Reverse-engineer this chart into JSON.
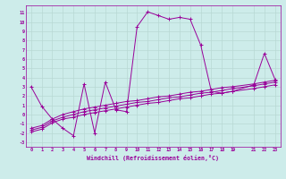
{
  "xlabel": "Windchill (Refroidissement éolien,°C)",
  "background_color": "#cdecea",
  "grid_color": "#b8d8d4",
  "line_color": "#990099",
  "x_ticks": [
    0,
    1,
    2,
    3,
    4,
    5,
    6,
    7,
    8,
    9,
    10,
    11,
    12,
    13,
    14,
    15,
    16,
    17,
    18,
    19,
    21,
    22,
    23
  ],
  "y_ticks": [
    11,
    10,
    9,
    8,
    7,
    6,
    5,
    4,
    3,
    2,
    1,
    0,
    -1,
    -2,
    -3
  ],
  "xlim": [
    -0.5,
    23.5
  ],
  "ylim": [
    -3.5,
    11.8
  ],
  "series1_x": [
    0,
    1,
    2,
    3,
    4,
    5,
    6,
    7,
    8,
    9,
    10,
    11,
    12,
    13,
    14,
    15,
    16,
    17,
    18,
    19,
    21,
    22,
    23
  ],
  "series1_y": [
    3.0,
    0.9,
    -0.5,
    -1.5,
    -2.3,
    3.3,
    -2.0,
    3.5,
    0.5,
    0.3,
    9.5,
    11.1,
    10.7,
    10.3,
    10.5,
    10.3,
    7.5,
    2.5,
    2.3,
    2.5,
    3.2,
    6.6,
    3.8
  ],
  "series2_x": [
    0,
    1,
    2,
    3,
    4,
    5,
    6,
    7,
    8,
    9,
    10,
    11,
    12,
    13,
    14,
    15,
    16,
    17,
    18,
    19,
    21,
    22,
    23
  ],
  "series2_y": [
    -1.5,
    -1.2,
    -0.5,
    0.0,
    0.3,
    0.6,
    0.8,
    1.0,
    1.2,
    1.4,
    1.5,
    1.7,
    1.9,
    2.0,
    2.2,
    2.4,
    2.5,
    2.7,
    2.9,
    3.0,
    3.3,
    3.5,
    3.7
  ],
  "series3_x": [
    0,
    1,
    2,
    3,
    4,
    5,
    6,
    7,
    8,
    9,
    10,
    11,
    12,
    13,
    14,
    15,
    16,
    17,
    18,
    19,
    21,
    22,
    23
  ],
  "series3_y": [
    -1.7,
    -1.4,
    -0.7,
    -0.3,
    0.0,
    0.3,
    0.5,
    0.7,
    0.9,
    1.1,
    1.3,
    1.4,
    1.6,
    1.8,
    1.9,
    2.1,
    2.3,
    2.4,
    2.6,
    2.8,
    3.1,
    3.3,
    3.5
  ],
  "series4_x": [
    0,
    1,
    2,
    3,
    4,
    5,
    6,
    7,
    8,
    9,
    10,
    11,
    12,
    13,
    14,
    15,
    16,
    17,
    18,
    19,
    21,
    22,
    23
  ],
  "series4_y": [
    -1.9,
    -1.6,
    -0.9,
    -0.5,
    -0.3,
    -0.0,
    0.2,
    0.4,
    0.6,
    0.8,
    1.0,
    1.2,
    1.3,
    1.5,
    1.7,
    1.8,
    2.0,
    2.2,
    2.3,
    2.5,
    2.8,
    3.0,
    3.2
  ],
  "marker": "+"
}
